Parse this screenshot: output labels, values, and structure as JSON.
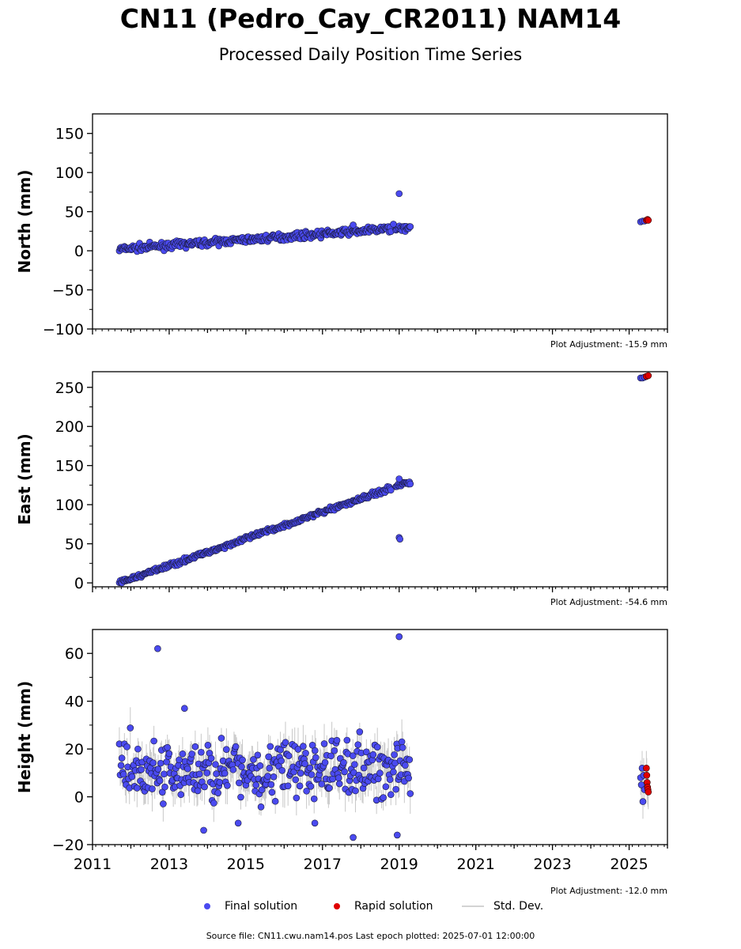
{
  "title": "CN11 (Pedro_Cay_CR2011) NAM14",
  "subtitle": "Processed Daily Position Time Series",
  "footer": "Source file: CN11.cwu.nam14.pos  Last epoch plotted: 2025-07-01 12:00:00",
  "legend": {
    "final": "Final solution",
    "rapid": "Rapid solution",
    "std": "Std. Dev."
  },
  "colors": {
    "final": "#4a4af0",
    "rapid": "#e00000",
    "std": "#c8c8c8",
    "edge": "#1a1a3a"
  },
  "chart_data": [
    {
      "type": "scatter",
      "ylabel": "North (mm)",
      "adjustment": "Plot Adjustment: -15.9 mm",
      "xlim": [
        2011,
        2026
      ],
      "ylim": [
        -100,
        175
      ],
      "yticks": [
        150,
        100,
        50,
        0,
        -50,
        -100
      ],
      "ytick_labels": [
        "150",
        "100",
        "50",
        "0",
        "−50",
        "−100"
      ],
      "final_trend": {
        "start": [
          2011.7,
          2
        ],
        "end": [
          2019.3,
          30
        ],
        "noise": 3
      },
      "final_outliers": [
        [
          2019.0,
          73
        ],
        [
          2018.85,
          34
        ],
        [
          2017.8,
          33
        ]
      ],
      "late_final": [
        [
          2025.3,
          37
        ],
        [
          2025.35,
          38
        ],
        [
          2025.4,
          38
        ]
      ],
      "rapid": [
        [
          2025.45,
          39
        ],
        [
          2025.48,
          40
        ],
        [
          2025.5,
          39
        ]
      ]
    },
    {
      "type": "scatter",
      "ylabel": "East (mm)",
      "adjustment": "Plot Adjustment: -54.6 mm",
      "xlim": [
        2011,
        2026
      ],
      "ylim": [
        -5,
        270
      ],
      "yticks": [
        250,
        200,
        150,
        100,
        50,
        0
      ],
      "ytick_labels": [
        "250",
        "200",
        "150",
        "100",
        "50",
        "0"
      ],
      "final_trend": {
        "start": [
          2011.7,
          0
        ],
        "end": [
          2019.3,
          130
        ],
        "noise": 2
      },
      "final_outliers": [
        [
          2019.0,
          58
        ],
        [
          2019.02,
          56
        ],
        [
          2019.0,
          133
        ]
      ],
      "late_final": [
        [
          2025.3,
          262
        ],
        [
          2025.35,
          262
        ],
        [
          2025.4,
          263
        ]
      ],
      "rapid": [
        [
          2025.45,
          264
        ],
        [
          2025.5,
          265
        ]
      ]
    },
    {
      "type": "scatter",
      "ylabel": "Height (mm)",
      "adjustment": "Plot Adjustment: -12.0 mm",
      "xlim": [
        2011,
        2026
      ],
      "ylim": [
        -20,
        70
      ],
      "yticks": [
        60,
        40,
        20,
        0,
        -20
      ],
      "ytick_labels": [
        "60",
        "40",
        "20",
        "0",
        "−20"
      ],
      "xticks": [
        2011,
        2013,
        2015,
        2017,
        2019,
        2021,
        2023,
        2025
      ],
      "xtick_labels": [
        "2011",
        "2013",
        "2015",
        "2017",
        "2019",
        "2021",
        "2023",
        "2025"
      ],
      "final_trend": {
        "start": [
          2011.7,
          10
        ],
        "end": [
          2019.3,
          12
        ],
        "noise": 9
      },
      "final_outliers": [
        [
          2012.7,
          62
        ],
        [
          2019.0,
          67
        ],
        [
          2013.4,
          37
        ],
        [
          2013.9,
          -14
        ],
        [
          2017.8,
          -17
        ],
        [
          2018.95,
          -16
        ],
        [
          2016.8,
          -11
        ],
        [
          2014.8,
          -11
        ]
      ],
      "late_final": [
        [
          2025.3,
          8
        ],
        [
          2025.32,
          5
        ],
        [
          2025.34,
          12
        ],
        [
          2025.36,
          -2
        ],
        [
          2025.38,
          9
        ],
        [
          2025.4,
          3
        ]
      ],
      "rapid": [
        [
          2025.45,
          12
        ],
        [
          2025.46,
          9
        ],
        [
          2025.47,
          6
        ],
        [
          2025.48,
          4
        ],
        [
          2025.49,
          3
        ],
        [
          2025.5,
          2
        ]
      ]
    }
  ]
}
